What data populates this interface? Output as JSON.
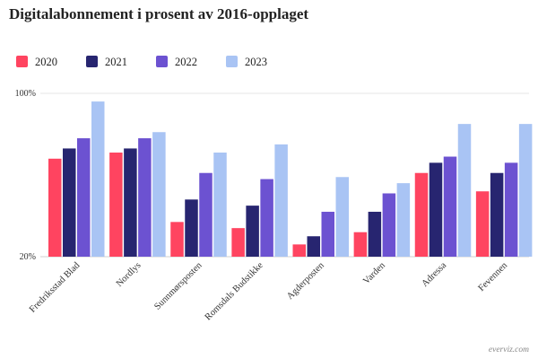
{
  "colors": {
    "2020": "#ff4460",
    "2021": "#272570",
    "2022": "#6c52d1",
    "2023": "#a9c4f4"
  },
  "credit": "everviz.com",
  "chart_data": {
    "type": "bar",
    "title": "Digitalabonnement i prosent av 2016-opplaget",
    "xlabel": "",
    "ylabel": "",
    "ylim": [
      20,
      100
    ],
    "yticks": [
      "20%",
      "100%"
    ],
    "grid": true,
    "legend_position": "top-left",
    "categories": [
      "Fredriksstad Blad",
      "Nordlys",
      "Sunnmørsposten",
      "Romsdals Budstikke",
      "Agderposten",
      "Varden",
      "Adressa",
      "Fevennen"
    ],
    "series": [
      {
        "name": "2020",
        "values": [
          68,
          71,
          37,
          34,
          26,
          32,
          61,
          52
        ]
      },
      {
        "name": "2021",
        "values": [
          73,
          73,
          48,
          45,
          30,
          42,
          66,
          61
        ]
      },
      {
        "name": "2022",
        "values": [
          78,
          78,
          61,
          58,
          42,
          51,
          69,
          66
        ]
      },
      {
        "name": "2023",
        "values": [
          96,
          81,
          71,
          75,
          59,
          56,
          85,
          85
        ]
      }
    ]
  }
}
